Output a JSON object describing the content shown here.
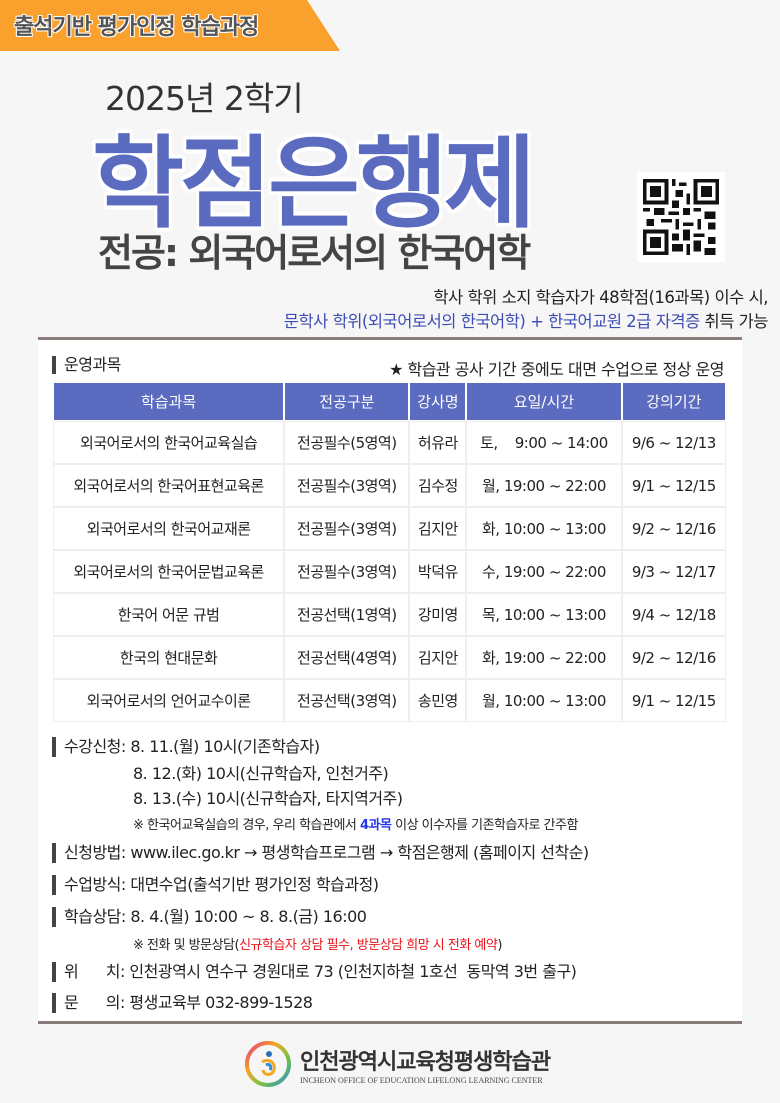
{
  "banner": "출석기반 평가인정 학습과정",
  "year": "2025년 2학기",
  "title": "학점은행제",
  "subtitle": "전공: 외국어로서의 한국어학",
  "intro": {
    "line1": "학사 학위 소지 학습자가 48학점(16과목) 이수 시,",
    "line2_blue": "문학사 학위(외국어로서의 한국어학) + 한국어교원 2급 자격증",
    "line2_end": " 취득 가능"
  },
  "courses": {
    "heading": "운영과목",
    "notice": "★ 학습관 공사 기간 중에도 대면 수업으로 정상 운영",
    "columns": [
      "학습과목",
      "전공구분",
      "강사명",
      "요일/시간",
      "강의기간"
    ],
    "rows": [
      [
        "외국어로서의 한국어교육실습",
        "전공필수(5영역)",
        "허유라",
        "토,    9:00 ~ 14:00",
        "9/6 ~ 12/13"
      ],
      [
        "외국어로서의 한국어표현교육론",
        "전공필수(3영역)",
        "김수정",
        "월, 19:00 ~ 22:00",
        "9/1 ~ 12/15"
      ],
      [
        "외국어로서의 한국어교재론",
        "전공필수(3영역)",
        "김지안",
        "화, 10:00 ~ 13:00",
        "9/2 ~ 12/16"
      ],
      [
        "외국어로서의 한국어문법교육론",
        "전공필수(3영역)",
        "박덕유",
        "수, 19:00 ~ 22:00",
        "9/3 ~ 12/17"
      ],
      [
        "한국어 어문 규범",
        "전공선택(1영역)",
        "강미영",
        "목, 10:00 ~ 13:00",
        "9/4 ~ 12/18"
      ],
      [
        "한국의 현대문화",
        "전공선택(4영역)",
        "김지안",
        "화, 19:00 ~ 22:00",
        "9/2 ~ 12/16"
      ],
      [
        "외국어로서의 언어교수이론",
        "전공선택(3영역)",
        "송민영",
        "월, 10:00 ~ 13:00",
        "9/1 ~ 12/15"
      ]
    ]
  },
  "registration": {
    "label": "수강신청: ",
    "d1": "8. 11.(월) 10시(기존학습자)",
    "d2": "8. 12.(화) 10시(신규학습자, 인천거주)",
    "d3": "8. 13.(수) 10시(신규학습자, 타지역거주)",
    "note_a": "※ 한국어교육실습의 경우, 우리 학습관에서 ",
    "note_b": "4과목",
    "note_c": " 이상 이수자를 기존학습자로 간주함"
  },
  "method": "신청방법: www.ilec.go.kr → 평생학습프로그램 → 학점은행제 (홈페이지 선착순)",
  "format": "수업방식: 대면수업(출석기반 평가인정 학습과정)",
  "consult": {
    "text": "학습상담: 8. 4.(월) 10:00 ~ 8. 8.(금) 16:00",
    "note_a": "※ 전화 및 방문상담(",
    "note_b": "신규학습자 상담 필수, 방문상담 희망 시 전화 예약",
    "note_c": ")"
  },
  "location": "위      치: 인천광역시 연수구 경원대로 73 (인천지하철 1호선  동막역 3번 출구)",
  "contact": "문      의: 평생교육부 032-899-1528",
  "footer": {
    "name": "인천광역시교육청평생학습관",
    "english": "INCHEON OFFICE OF EDUCATION LIFELONG LEARNING CENTER"
  },
  "colors": {
    "accent": "#5b6bbf",
    "banner": "#f9a02d",
    "red": "#e8141b"
  }
}
